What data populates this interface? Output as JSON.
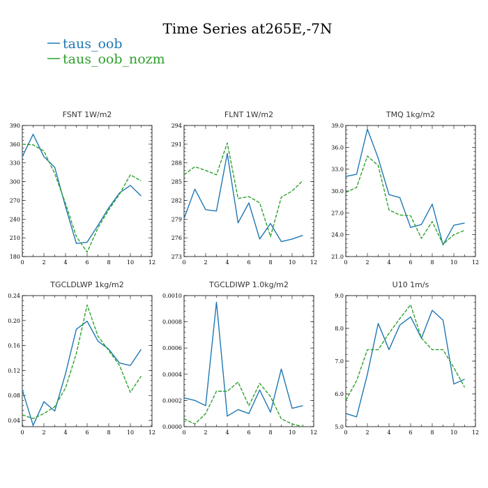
{
  "figure": {
    "title": "Time Series at265E,-7N",
    "legend": [
      {
        "label": "taus_oob",
        "color": "#1f77b4",
        "dash": "solid"
      },
      {
        "label": "taus_oob_nozm",
        "color": "#2ca02c",
        "dash": "dashed"
      }
    ]
  },
  "chart_data": [
    {
      "type": "line",
      "title": "FSNT   1W/m2",
      "x": [
        0,
        1,
        2,
        3,
        4,
        5,
        6,
        7,
        8,
        9,
        10,
        11
      ],
      "xlim": [
        0,
        12
      ],
      "xticks": [
        "0",
        "2",
        "4",
        "6",
        "8",
        "10",
        "12"
      ],
      "ylim": [
        180,
        390
      ],
      "yticks": [
        "180",
        "210",
        "240",
        "270",
        "300",
        "330",
        "360",
        "390"
      ],
      "series": [
        {
          "name": "taus_oob",
          "color": "#1f77b4",
          "values": [
            340,
            376,
            340,
            323,
            260,
            201,
            203,
            230,
            258,
            282,
            294,
            277
          ]
        },
        {
          "name": "taus_oob_nozm",
          "color": "#2ca02c",
          "values": [
            360,
            359,
            349,
            313,
            265,
            212,
            187,
            226,
            255,
            280,
            311,
            301
          ]
        }
      ]
    },
    {
      "type": "line",
      "title": "FLNT   1W/m2",
      "x": [
        0,
        1,
        2,
        3,
        4,
        5,
        6,
        7,
        8,
        9,
        10,
        11
      ],
      "xlim": [
        0,
        12
      ],
      "xticks": [
        "0",
        "2",
        "4",
        "6",
        "8",
        "10",
        "12"
      ],
      "ylim": [
        273,
        294
      ],
      "yticks": [
        "273",
        "276",
        "279",
        "282",
        "285",
        "288",
        "291",
        "294"
      ],
      "series": [
        {
          "name": "taus_oob",
          "color": "#1f77b4",
          "values": [
            279.1,
            283.8,
            280.5,
            280.3,
            289.5,
            278.4,
            281.6,
            275.8,
            278.3,
            275.4,
            275.8,
            276.4
          ]
        },
        {
          "name": "taus_oob_nozm",
          "color": "#2ca02c",
          "values": [
            286.1,
            287.4,
            286.8,
            286.1,
            291.2,
            282.3,
            282.6,
            281.6,
            276.2,
            282.5,
            283.5,
            285.2
          ]
        }
      ]
    },
    {
      "type": "line",
      "title": "TMQ   1kg/m2",
      "x": [
        0,
        1,
        2,
        3,
        4,
        5,
        6,
        7,
        8,
        9,
        10,
        11
      ],
      "xlim": [
        0,
        12
      ],
      "xticks": [
        "0",
        "2",
        "4",
        "6",
        "8",
        "10",
        "12"
      ],
      "ylim": [
        21.0,
        39.0
      ],
      "yticks": [
        "21.0",
        "24.0",
        "27.0",
        "30.0",
        "33.0",
        "36.0",
        "39.0"
      ],
      "series": [
        {
          "name": "taus_oob",
          "color": "#1f77b4",
          "values": [
            32.0,
            32.3,
            38.5,
            34.5,
            29.5,
            29.1,
            25.0,
            25.4,
            28.2,
            22.6,
            25.3,
            25.6
          ]
        },
        {
          "name": "taus_oob_nozm",
          "color": "#2ca02c",
          "values": [
            29.8,
            30.5,
            34.8,
            33.5,
            27.4,
            26.7,
            26.6,
            23.5,
            25.8,
            22.7,
            24.0,
            24.6
          ]
        }
      ]
    },
    {
      "type": "line",
      "title": "TGCLDLWP   1kg/m2",
      "x": [
        0,
        1,
        2,
        3,
        4,
        5,
        6,
        7,
        8,
        9,
        10,
        11
      ],
      "xlim": [
        0,
        12
      ],
      "xticks": [
        "0",
        "2",
        "4",
        "6",
        "8",
        "10",
        "12"
      ],
      "ylim": [
        0.03,
        0.24
      ],
      "yticks": [
        "0.04",
        "0.08",
        "0.12",
        "0.16",
        "0.20",
        "0.24"
      ],
      "series": [
        {
          "name": "taus_oob",
          "color": "#1f77b4",
          "values": [
            0.089,
            0.032,
            0.07,
            0.055,
            0.115,
            0.186,
            0.199,
            0.167,
            0.154,
            0.132,
            0.128,
            0.154
          ]
        },
        {
          "name": "taus_oob_nozm",
          "color": "#2ca02c",
          "values": [
            0.049,
            0.043,
            0.051,
            0.062,
            0.092,
            0.147,
            0.225,
            0.175,
            0.152,
            0.128,
            0.085,
            0.111
          ]
        }
      ]
    },
    {
      "type": "line",
      "title": "TGCLDIWP   1.0kg/m2",
      "x": [
        0,
        1,
        2,
        3,
        4,
        5,
        6,
        7,
        8,
        9,
        10,
        11
      ],
      "xlim": [
        0,
        12
      ],
      "xticks": [
        "0",
        "2",
        "4",
        "6",
        "8",
        "10",
        "12"
      ],
      "ylim": [
        0.0,
        0.001
      ],
      "yticks": [
        "0.0000",
        "0.0002",
        "0.0004",
        "0.0006",
        "0.0008",
        "0.0010"
      ],
      "series": [
        {
          "name": "taus_oob",
          "color": "#1f77b4",
          "values": [
            0.00022,
            0.0002,
            0.00016,
            0.00095,
            8e-05,
            0.00013,
            0.0001,
            0.00028,
            0.00011,
            0.00044,
            0.00014,
            0.00016
          ]
        },
        {
          "name": "taus_oob_nozm",
          "color": "#2ca02c",
          "values": [
            6e-05,
            2e-05,
            0.0001,
            0.00027,
            0.00027,
            0.00034,
            0.00016,
            0.00033,
            0.00023,
            6e-05,
            2e-05,
            0.0
          ]
        }
      ]
    },
    {
      "type": "line",
      "title": "U10   1m/s",
      "x": [
        0,
        1,
        2,
        3,
        4,
        5,
        6,
        7,
        8,
        9,
        10,
        11
      ],
      "xlim": [
        0,
        12
      ],
      "xticks": [
        "0",
        "2",
        "4",
        "6",
        "8",
        "10",
        "12"
      ],
      "ylim": [
        5.0,
        9.0
      ],
      "yticks": [
        "5.0",
        "6.0",
        "7.0",
        "8.0",
        "9.0"
      ],
      "series": [
        {
          "name": "taus_oob",
          "color": "#1f77b4",
          "values": [
            5.4,
            5.3,
            6.6,
            8.15,
            7.35,
            8.1,
            8.35,
            7.7,
            8.55,
            8.25,
            6.3,
            6.45
          ]
        },
        {
          "name": "taus_oob_nozm",
          "color": "#2ca02c",
          "values": [
            5.8,
            6.4,
            7.35,
            7.35,
            7.85,
            8.3,
            8.72,
            7.7,
            7.35,
            7.35,
            6.8,
            6.2
          ]
        }
      ]
    }
  ]
}
